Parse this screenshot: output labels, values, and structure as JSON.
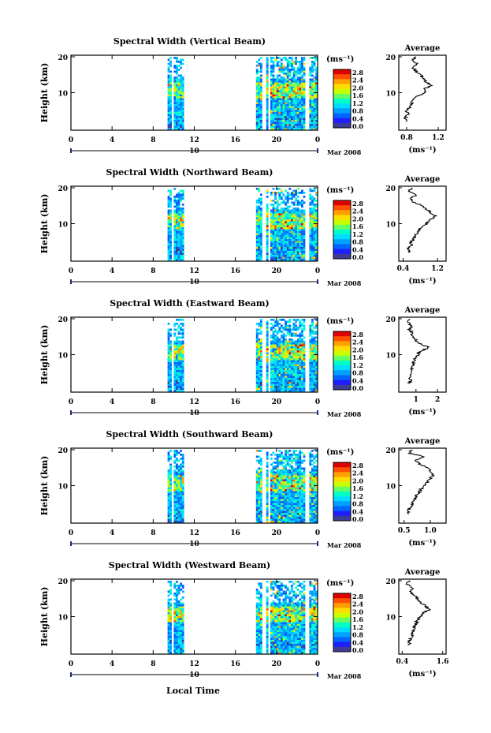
{
  "figure": {
    "xlabel": "Local Time",
    "date_label": "Mar 2008",
    "cbar_unit": "(ms⁻¹)",
    "avg_title": "Average",
    "avg_unit": "(ms⁻¹)",
    "ylabel": "Height (km)"
  },
  "chart_data": [
    {
      "type": "heatmap",
      "title": "Spectral Width (Vertical Beam)",
      "ylabel": "Height (km)",
      "xlabel": "Local Time",
      "x_ticks": [
        "0",
        "4",
        "8",
        "12",
        "16",
        "20",
        "0"
      ],
      "y_ticks": [
        "20",
        "10"
      ],
      "day_marker": "10",
      "colorbar": {
        "unit": "(ms⁻¹)",
        "ticks": [
          "2.8",
          "2.4",
          "2.0",
          "1.6",
          "1.2",
          "0.8",
          "0.4",
          "0.0"
        ],
        "range": [
          0,
          2.8
        ]
      },
      "data_blocks_local_time": [
        [
          9.4,
          10.8
        ],
        [
          18.0,
          23.8
        ]
      ],
      "average": {
        "title": "Average",
        "xlabel": "(ms⁻¹)",
        "x_ticks": [
          "0.8",
          "1.2"
        ],
        "y_ticks": [
          "20",
          "10"
        ],
        "xlim": [
          0.7,
          1.3
        ],
        "profile": [
          [
            0.8,
            2
          ],
          [
            0.78,
            3
          ],
          [
            0.82,
            4
          ],
          [
            0.8,
            5
          ],
          [
            0.84,
            6
          ],
          [
            0.86,
            7
          ],
          [
            0.88,
            8
          ],
          [
            0.92,
            9
          ],
          [
            1.05,
            10
          ],
          [
            1.02,
            11
          ],
          [
            1.12,
            12
          ],
          [
            1.05,
            13
          ],
          [
            1.0,
            14
          ],
          [
            0.98,
            15
          ],
          [
            0.92,
            16
          ],
          [
            0.88,
            17
          ],
          [
            0.94,
            18
          ],
          [
            0.86,
            19
          ],
          [
            0.92,
            20
          ]
        ]
      }
    },
    {
      "type": "heatmap",
      "title": "Spectral Width (Northward Beam)",
      "ylabel": "Height (km)",
      "xlabel": "Local Time",
      "x_ticks": [
        "0",
        "4",
        "8",
        "12",
        "16",
        "20",
        "0"
      ],
      "y_ticks": [
        "20",
        "10"
      ],
      "day_marker": "10",
      "colorbar": {
        "unit": "(ms⁻¹)",
        "ticks": [
          "2.8",
          "2.4",
          "2.0",
          "1.6",
          "1.2",
          "0.8",
          "0.4",
          "0.0"
        ],
        "range": [
          0,
          2.8
        ]
      },
      "data_blocks_local_time": [
        [
          9.4,
          10.8
        ],
        [
          18.0,
          23.8
        ]
      ],
      "average": {
        "title": "Average",
        "xlabel": "(ms⁻¹)",
        "x_ticks": [
          "0.4",
          "1.2"
        ],
        "y_ticks": [
          "20",
          "10"
        ],
        "xlim": [
          0.3,
          1.4
        ],
        "profile": [
          [
            0.55,
            2
          ],
          [
            0.5,
            3
          ],
          [
            0.58,
            4
          ],
          [
            0.6,
            5
          ],
          [
            0.66,
            6
          ],
          [
            0.7,
            7
          ],
          [
            0.76,
            8
          ],
          [
            0.82,
            9
          ],
          [
            0.95,
            10
          ],
          [
            1.0,
            11
          ],
          [
            1.15,
            12
          ],
          [
            1.05,
            13
          ],
          [
            0.95,
            14
          ],
          [
            0.85,
            15
          ],
          [
            0.65,
            16
          ],
          [
            0.55,
            17
          ],
          [
            0.7,
            18
          ],
          [
            0.5,
            19
          ],
          [
            0.6,
            20
          ]
        ]
      }
    },
    {
      "type": "heatmap",
      "title": "Spectral Width (Eastward Beam)",
      "ylabel": "Height (km)",
      "xlabel": "Local Time",
      "x_ticks": [
        "0",
        "4",
        "8",
        "12",
        "16",
        "20",
        "0"
      ],
      "y_ticks": [
        "20",
        "10"
      ],
      "day_marker": "10",
      "colorbar": {
        "unit": "(ms⁻¹)",
        "ticks": [
          "2.8",
          "2.4",
          "2.0",
          "1.6",
          "1.2",
          "0.8",
          "0.4",
          "0.0"
        ],
        "range": [
          0,
          2.8
        ]
      },
      "data_blocks_local_time": [
        [
          9.4,
          10.8
        ],
        [
          18.0,
          23.8
        ]
      ],
      "average": {
        "title": "Average",
        "xlabel": "(ms⁻¹)",
        "x_ticks": [
          "1",
          "2"
        ],
        "y_ticks": [
          "20",
          "10"
        ],
        "xlim": [
          0.2,
          2.4
        ],
        "profile": [
          [
            0.7,
            2
          ],
          [
            0.75,
            3
          ],
          [
            0.72,
            4
          ],
          [
            0.8,
            5
          ],
          [
            0.78,
            6
          ],
          [
            0.85,
            7
          ],
          [
            0.9,
            8
          ],
          [
            0.95,
            9
          ],
          [
            1.1,
            10
          ],
          [
            1.2,
            11
          ],
          [
            1.6,
            12
          ],
          [
            1.2,
            13
          ],
          [
            1.0,
            14
          ],
          [
            0.9,
            15
          ],
          [
            0.8,
            16
          ],
          [
            0.7,
            17
          ],
          [
            0.8,
            18
          ],
          [
            0.6,
            19
          ],
          [
            0.7,
            20
          ]
        ]
      }
    },
    {
      "type": "heatmap",
      "title": "Spectral Width (Southward Beam)",
      "ylabel": "Height (km)",
      "xlabel": "Local Time",
      "x_ticks": [
        "0",
        "4",
        "8",
        "12",
        "16",
        "20",
        "0"
      ],
      "y_ticks": [
        "20",
        "10"
      ],
      "day_marker": "10",
      "colorbar": {
        "unit": "(ms⁻¹)",
        "ticks": [
          "2.8",
          "2.4",
          "2.0",
          "1.6",
          "1.2",
          "0.8",
          "0.4",
          "0.0"
        ],
        "range": [
          0,
          2.8
        ]
      },
      "data_blocks_local_time": [
        [
          9.4,
          10.8
        ],
        [
          18.0,
          23.8
        ]
      ],
      "average": {
        "title": "Average",
        "xlabel": "(ms⁻¹)",
        "x_ticks": [
          "0.5",
          "1.0"
        ],
        "y_ticks": [
          "20",
          "10"
        ],
        "xlim": [
          0.4,
          1.3
        ],
        "profile": [
          [
            0.6,
            2
          ],
          [
            0.58,
            3
          ],
          [
            0.62,
            4
          ],
          [
            0.65,
            5
          ],
          [
            0.7,
            6
          ],
          [
            0.72,
            7
          ],
          [
            0.78,
            8
          ],
          [
            0.82,
            9
          ],
          [
            0.9,
            10
          ],
          [
            0.95,
            11
          ],
          [
            1.0,
            12
          ],
          [
            1.05,
            13
          ],
          [
            1.0,
            14
          ],
          [
            0.95,
            15
          ],
          [
            0.8,
            16
          ],
          [
            0.7,
            17
          ],
          [
            0.9,
            18
          ],
          [
            0.6,
            19
          ],
          [
            0.65,
            20
          ]
        ]
      }
    },
    {
      "type": "heatmap",
      "title": "Spectral Width (Westward Beam)",
      "ylabel": "Height (km)",
      "xlabel": "Local Time",
      "x_ticks": [
        "0",
        "4",
        "8",
        "12",
        "16",
        "20",
        "0"
      ],
      "y_ticks": [
        "20",
        "10"
      ],
      "day_marker": "10",
      "colorbar": {
        "unit": "(ms⁻¹)",
        "ticks": [
          "2.8",
          "2.4",
          "2.0",
          "1.6",
          "1.2",
          "0.8",
          "0.4",
          "0.0"
        ],
        "range": [
          0,
          2.8
        ]
      },
      "data_blocks_local_time": [
        [
          9.4,
          10.8
        ],
        [
          18.0,
          23.8
        ]
      ],
      "average": {
        "title": "Average",
        "xlabel": "(ms⁻¹)",
        "x_ticks": [
          "0.4",
          "1.6"
        ],
        "y_ticks": [
          "20",
          "10"
        ],
        "xlim": [
          0.3,
          1.7
        ],
        "profile": [
          [
            0.6,
            2
          ],
          [
            0.62,
            3
          ],
          [
            0.65,
            4
          ],
          [
            0.7,
            5
          ],
          [
            0.72,
            6
          ],
          [
            0.75,
            7
          ],
          [
            0.8,
            8
          ],
          [
            0.85,
            9
          ],
          [
            0.95,
            10
          ],
          [
            1.0,
            11
          ],
          [
            1.2,
            12
          ],
          [
            1.1,
            13
          ],
          [
            0.95,
            14
          ],
          [
            0.85,
            15
          ],
          [
            0.75,
            16
          ],
          [
            0.65,
            17
          ],
          [
            0.7,
            18
          ],
          [
            0.55,
            19
          ],
          [
            0.6,
            20
          ]
        ]
      }
    }
  ]
}
